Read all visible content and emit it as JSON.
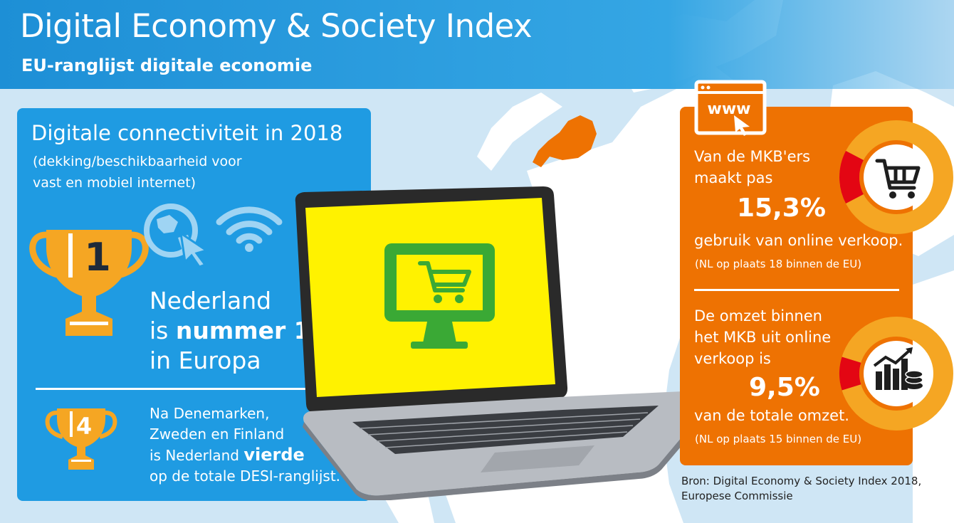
{
  "header": {
    "title": "Digital Economy & Society Index",
    "subtitle": "EU-ranglijst digitale economie"
  },
  "connectivity": {
    "title": "Digitale connectiviteit in 2018",
    "subtitle_line1": "(dekking/beschikbaarheid voor",
    "subtitle_line2": "vast en mobiel internet)",
    "trophy_rank": "1",
    "rank_line1": "Nederland",
    "rank_line2_prefix": "is ",
    "rank_line2_bold": "nummer 1",
    "rank_line3": "in Europa",
    "overall_trophy_rank": "4",
    "overall_line1": "Na Denemarken,",
    "overall_line2": "Zweden en Finland",
    "overall_line3_prefix": "is Nederland ",
    "overall_line3_bold": "vierde",
    "overall_line4": "op de totale DESI-ranglijst."
  },
  "online_sales": {
    "www_label": "www",
    "line1": "Van de MKB'ers",
    "line2": "maakt pas",
    "value": "15,3%",
    "line3": "gebruik van online verkoop.",
    "note": "(NL op plaats 18 binnen de EU)",
    "gauge_fraction": 0.153
  },
  "online_turnover": {
    "line1": "De omzet binnen",
    "line2": "het MKB uit online",
    "line3": "verkoop is",
    "value": "9,5%",
    "line4": "van de totale omzet.",
    "note": "(NL op plaats 15 binnen de EU)",
    "gauge_fraction": 0.095
  },
  "source": {
    "line1": "Bron: Digital Economy & Society Index 2018,",
    "line2": "Europese Commissie"
  },
  "colors": {
    "blue": "#1f9be2",
    "orange": "#ee7202",
    "gold": "#f5a623",
    "yellow_screen": "#fff200",
    "green_icon": "#3aa935",
    "gauge_red": "#e30613"
  }
}
